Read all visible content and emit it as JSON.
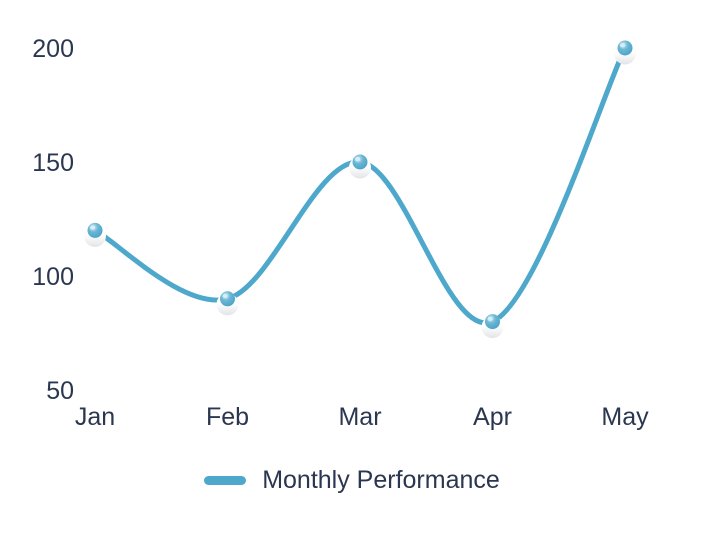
{
  "chart_data": {
    "type": "line",
    "categories": [
      "Jan",
      "Feb",
      "Mar",
      "Apr",
      "May"
    ],
    "series": [
      {
        "name": "Monthly Performance",
        "values": [
          120,
          90,
          150,
          80,
          200
        ]
      }
    ],
    "y_ticks": [
      50,
      100,
      150,
      200
    ],
    "ylim": [
      50,
      200
    ],
    "title": "",
    "xlabel": "",
    "ylabel": "",
    "grid": false,
    "legend_position": "bottom",
    "line_color": "#4da8cb",
    "text_color": "#2b3750",
    "marker_ball_color": "#4da8cb",
    "marker_ball_highlight": "#d6eef7",
    "marker_halo_color": "#ffffff",
    "marker_halo_shade": "#e2e4e8",
    "background_color": "#ffffff"
  }
}
